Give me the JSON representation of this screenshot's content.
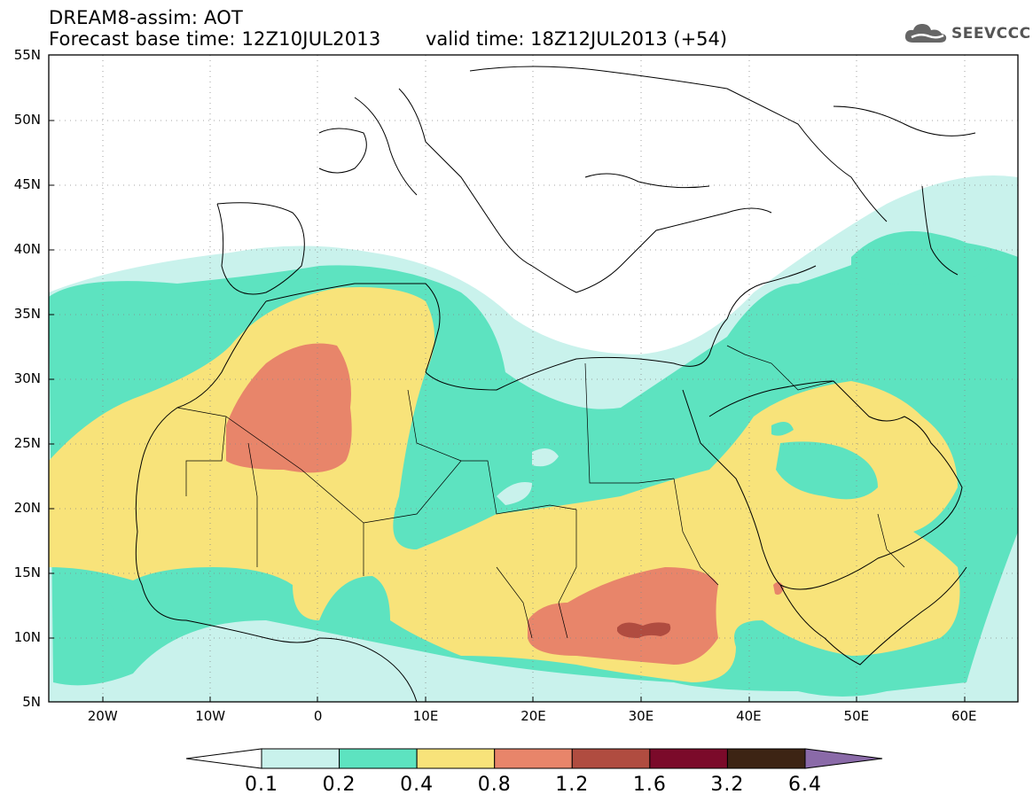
{
  "header": {
    "title_line1": "DREAM8-assim: AOT",
    "title_line2": "Forecast base time: 12Z10JUL2013",
    "valid_time": "valid time: 18Z12JUL2013 (+54)",
    "logo_text": "SEEVCCC",
    "logo_icon": "cloud-icon"
  },
  "map": {
    "lon_range": [
      -25,
      65
    ],
    "lat_range": [
      5,
      55
    ],
    "lat_labels": [
      "55N",
      "50N",
      "45N",
      "40N",
      "35N",
      "30N",
      "25N",
      "20N",
      "15N",
      "10N",
      "5N"
    ],
    "lon_labels": [
      "20W",
      "10W",
      "0",
      "10E",
      "20E",
      "30E",
      "40E",
      "50E",
      "60E"
    ],
    "gridlines": true
  },
  "colorbar": {
    "boundaries": [
      "0.1",
      "0.2",
      "0.4",
      "0.8",
      "1.2",
      "1.6",
      "3.2",
      "6.4"
    ],
    "colors": [
      "#ffffff",
      "#c9f2ec",
      "#5de3c0",
      "#f8e37a",
      "#e8856a",
      "#b04c40",
      "#7b0a2a",
      "#3d2414",
      "#8a6aa8"
    ]
  }
}
